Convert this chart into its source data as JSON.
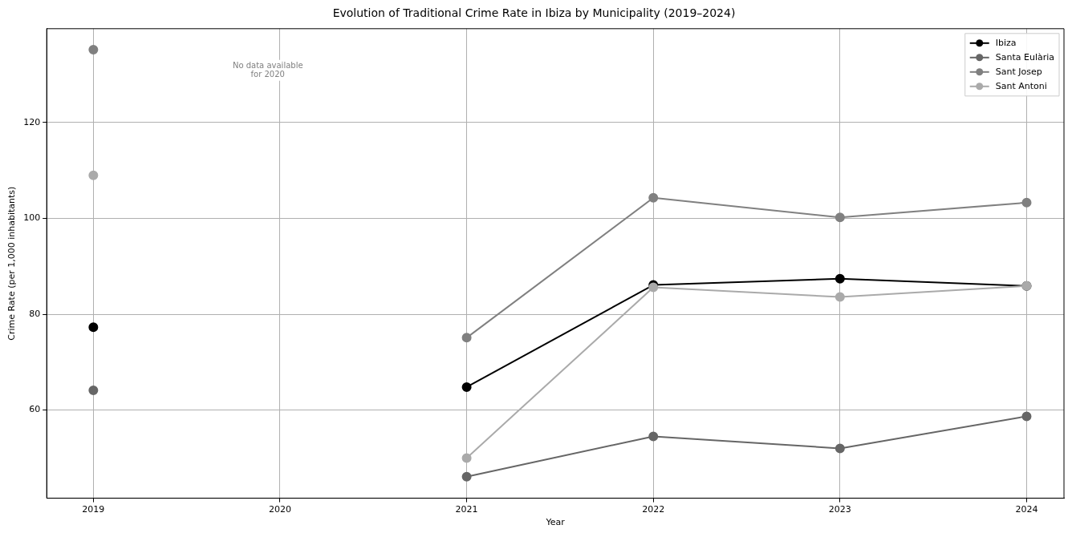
{
  "chart_data": {
    "type": "line",
    "title": "Evolution of Traditional Crime Rate in Ibiza by Municipality (2019–2024)",
    "xlabel": "Year",
    "ylabel": "Crime Rate (per 1,000 inhabitants)",
    "x": [
      2019,
      2020,
      2021,
      2022,
      2023,
      2024
    ],
    "series": [
      {
        "name": "Ibiza",
        "color": "#000000",
        "values": [
          77.3,
          null,
          64.8,
          86.1,
          87.4,
          85.9
        ]
      },
      {
        "name": "Santa Eulària",
        "color": "#666666",
        "values": [
          64.1,
          null,
          46.1,
          54.5,
          52.0,
          58.7
        ]
      },
      {
        "name": "Sant Josep",
        "color": "#808080",
        "values": [
          135.2,
          null,
          75.1,
          104.3,
          100.2,
          103.3
        ]
      },
      {
        "name": "Sant Antoni",
        "color": "#aaaaaa",
        "values": [
          109.0,
          null,
          50.0,
          85.6,
          83.6,
          85.9
        ]
      }
    ],
    "xlim": [
      2018.75,
      2024.2
    ],
    "xticks": [
      2019,
      2020,
      2021,
      2022,
      2023,
      2024
    ],
    "ylim": [
      41.6,
      139.6
    ],
    "yticks": [
      60,
      80,
      100,
      120
    ],
    "grid": true,
    "legend": "top right",
    "marker": "circle",
    "line_style": "solid",
    "annotations": [
      "No data available\nfor 2020"
    ]
  }
}
